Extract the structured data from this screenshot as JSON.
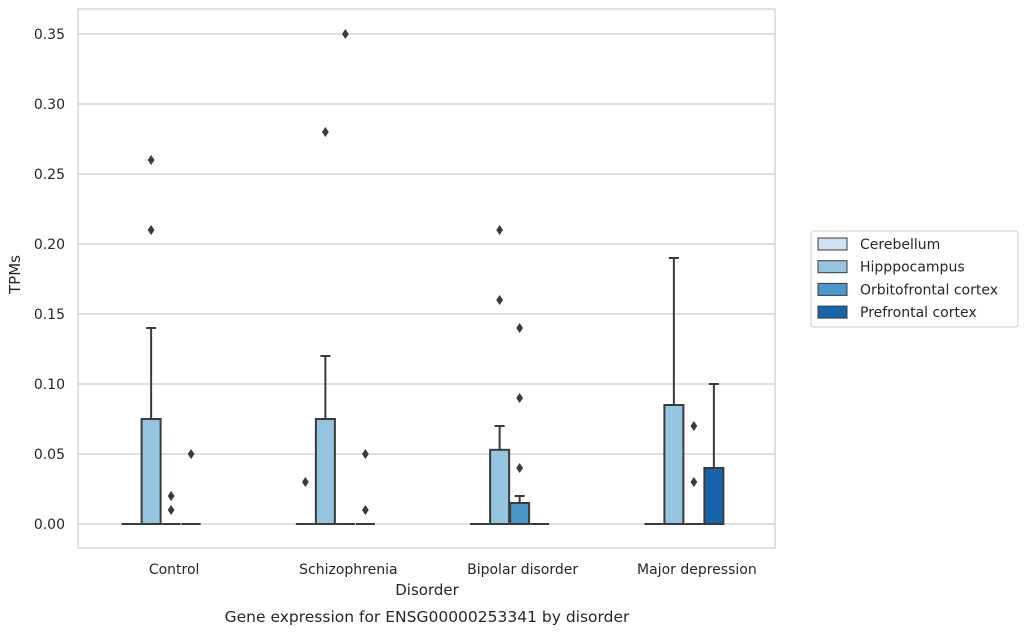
{
  "chart_data": {
    "type": "box",
    "caption": "Gene expression for ENSG00000253341 by disorder",
    "xlabel": "Disorder",
    "ylabel": "TPMs",
    "ylim": [
      -0.017,
      0.367
    ],
    "yticks": [
      0.0,
      0.05,
      0.1,
      0.15,
      0.2,
      0.25,
      0.3,
      0.35
    ],
    "ytick_labels": [
      "0.00",
      "0.05",
      "0.10",
      "0.15",
      "0.20",
      "0.25",
      "0.30",
      "0.35"
    ],
    "grid": "horizontal",
    "legend_position": "right",
    "categories": [
      "Control",
      "Schizophrenia",
      "Bipolar disorder",
      "Major depression"
    ],
    "series": [
      {
        "name": "Cerebellum",
        "color": "#d0e1f2",
        "boxes": [
          {
            "q1": 0,
            "median": 0,
            "q3": 0,
            "whisker_low": 0,
            "whisker_high": 0,
            "outliers": []
          },
          {
            "q1": 0,
            "median": 0,
            "q3": 0,
            "whisker_low": 0,
            "whisker_high": 0,
            "outliers": [
              0.03
            ]
          },
          {
            "q1": 0,
            "median": 0,
            "q3": 0,
            "whisker_low": 0,
            "whisker_high": 0,
            "outliers": []
          },
          {
            "q1": 0,
            "median": 0,
            "q3": 0,
            "whisker_low": 0,
            "whisker_high": 0,
            "outliers": []
          }
        ]
      },
      {
        "name": "Hipppocampus",
        "color": "#94c4df",
        "boxes": [
          {
            "q1": 0,
            "median": 0,
            "q3": 0.075,
            "whisker_low": 0,
            "whisker_high": 0.14,
            "outliers": [
              0.21,
              0.26
            ]
          },
          {
            "q1": 0,
            "median": 0,
            "q3": 0.075,
            "whisker_low": 0,
            "whisker_high": 0.12,
            "outliers": [
              0.28
            ]
          },
          {
            "q1": 0,
            "median": 0,
            "q3": 0.053,
            "whisker_low": 0,
            "whisker_high": 0.07,
            "outliers": [
              0.16,
              0.21
            ]
          },
          {
            "q1": 0,
            "median": 0,
            "q3": 0.085,
            "whisker_low": 0,
            "whisker_high": 0.19,
            "outliers": []
          }
        ]
      },
      {
        "name": "Orbitofrontal cortex",
        "color": "#4a98c9",
        "boxes": [
          {
            "q1": 0,
            "median": 0,
            "q3": 0,
            "whisker_low": 0,
            "whisker_high": 0,
            "outliers": [
              0.01,
              0.02
            ]
          },
          {
            "q1": 0,
            "median": 0,
            "q3": 0,
            "whisker_low": 0,
            "whisker_high": 0,
            "outliers": [
              0.35
            ]
          },
          {
            "q1": 0,
            "median": 0,
            "q3": 0.015,
            "whisker_low": 0,
            "whisker_high": 0.02,
            "outliers": [
              0.04,
              0.09,
              0.14
            ]
          },
          {
            "q1": 0,
            "median": 0,
            "q3": 0,
            "whisker_low": 0,
            "whisker_high": 0,
            "outliers": [
              0.03,
              0.07
            ]
          }
        ]
      },
      {
        "name": "Prefrontal cortex",
        "color": "#1764ab",
        "boxes": [
          {
            "q1": 0,
            "median": 0,
            "q3": 0,
            "whisker_low": 0,
            "whisker_high": 0,
            "outliers": [
              0.05
            ]
          },
          {
            "q1": 0,
            "median": 0,
            "q3": 0,
            "whisker_low": 0,
            "whisker_high": 0,
            "outliers": [
              0.01,
              0.05
            ]
          },
          {
            "q1": 0,
            "median": 0,
            "q3": 0,
            "whisker_low": 0,
            "whisker_high": 0,
            "outliers": []
          },
          {
            "q1": 0,
            "median": 0,
            "q3": 0.04,
            "whisker_low": 0,
            "whisker_high": 0.1,
            "outliers": []
          }
        ]
      }
    ]
  }
}
